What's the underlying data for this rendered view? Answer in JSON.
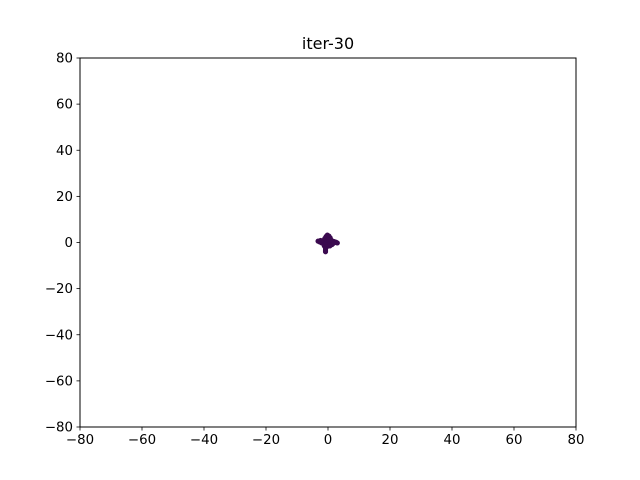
{
  "chart_data": {
    "type": "scatter",
    "title": "iter-30",
    "xlabel": "",
    "ylabel": "",
    "xlim": [
      -80,
      80
    ],
    "ylim": [
      -80,
      80
    ],
    "xticks": [
      -80,
      -60,
      -40,
      -20,
      0,
      20,
      40,
      60,
      80
    ],
    "yticks": [
      -80,
      -60,
      -40,
      -20,
      0,
      20,
      40,
      60,
      80
    ],
    "xtick_labels": [
      "−80",
      "−60",
      "−40",
      "−20",
      "0",
      "20",
      "40",
      "60",
      "80"
    ],
    "ytick_labels": [
      "−80",
      "−60",
      "−40",
      "−20",
      "0",
      "20",
      "40",
      "60",
      "80"
    ],
    "grid": false,
    "marker_color": "#3b0a4f",
    "points": [
      {
        "x": -3.2,
        "y": 0.6
      },
      {
        "x": -2.6,
        "y": 0.2
      },
      {
        "x": -2.0,
        "y": -0.2
      },
      {
        "x": -1.5,
        "y": 0.9
      },
      {
        "x": -1.0,
        "y": 1.8
      },
      {
        "x": -0.6,
        "y": 2.6
      },
      {
        "x": -0.2,
        "y": 3.2
      },
      {
        "x": 0.3,
        "y": 2.8
      },
      {
        "x": 0.7,
        "y": 2.0
      },
      {
        "x": 0.2,
        "y": 1.0
      },
      {
        "x": -0.4,
        "y": 0.4
      },
      {
        "x": 0.0,
        "y": 0.0
      },
      {
        "x": -0.8,
        "y": -0.6
      },
      {
        "x": -1.2,
        "y": -1.4
      },
      {
        "x": -0.3,
        "y": -1.0
      },
      {
        "x": 0.5,
        "y": -0.5
      },
      {
        "x": 1.0,
        "y": 0.1
      },
      {
        "x": 1.5,
        "y": 0.6
      },
      {
        "x": 2.0,
        "y": 0.4
      },
      {
        "x": 2.6,
        "y": 0.1
      },
      {
        "x": 3.0,
        "y": -0.2
      },
      {
        "x": 1.3,
        "y": -0.9
      },
      {
        "x": 0.6,
        "y": -1.5
      },
      {
        "x": -0.5,
        "y": -2.0
      },
      {
        "x": -0.8,
        "y": -2.7
      },
      {
        "x": -0.8,
        "y": -3.4
      },
      {
        "x": -0.8,
        "y": -4.0
      },
      {
        "x": -2.4,
        "y": 0.9
      },
      {
        "x": 1.8,
        "y": -0.3
      },
      {
        "x": 0.9,
        "y": 1.2
      }
    ]
  }
}
